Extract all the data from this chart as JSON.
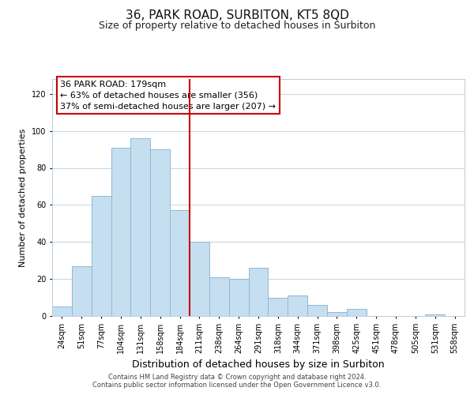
{
  "title": "36, PARK ROAD, SURBITON, KT5 8QD",
  "subtitle": "Size of property relative to detached houses in Surbiton",
  "xlabel": "Distribution of detached houses by size in Surbiton",
  "ylabel": "Number of detached properties",
  "categories": [
    "24sqm",
    "51sqm",
    "77sqm",
    "104sqm",
    "131sqm",
    "158sqm",
    "184sqm",
    "211sqm",
    "238sqm",
    "264sqm",
    "291sqm",
    "318sqm",
    "344sqm",
    "371sqm",
    "398sqm",
    "425sqm",
    "451sqm",
    "478sqm",
    "505sqm",
    "531sqm",
    "558sqm"
  ],
  "values": [
    5,
    27,
    65,
    91,
    96,
    90,
    57,
    40,
    21,
    20,
    26,
    10,
    11,
    6,
    2,
    4,
    0,
    0,
    0,
    1,
    0
  ],
  "bar_color": "#c5dff0",
  "bar_edge_color": "#90b8d4",
  "vline_x_index": 6,
  "vline_color": "#cc0000",
  "annotation_text": "36 PARK ROAD: 179sqm\n← 63% of detached houses are smaller (356)\n37% of semi-detached houses are larger (207) →",
  "annotation_box_color": "#ffffff",
  "annotation_box_edge_color": "#cc0000",
  "ylim": [
    0,
    128
  ],
  "yticks": [
    0,
    20,
    40,
    60,
    80,
    100,
    120
  ],
  "footer_line1": "Contains HM Land Registry data © Crown copyright and database right 2024.",
  "footer_line2": "Contains public sector information licensed under the Open Government Licence v3.0.",
  "bg_color": "#ffffff",
  "grid_color": "#c8d8e8",
  "title_fontsize": 11,
  "subtitle_fontsize": 9,
  "xlabel_fontsize": 9,
  "ylabel_fontsize": 8,
  "tick_fontsize": 7,
  "footer_fontsize": 6,
  "annotation_fontsize": 8
}
